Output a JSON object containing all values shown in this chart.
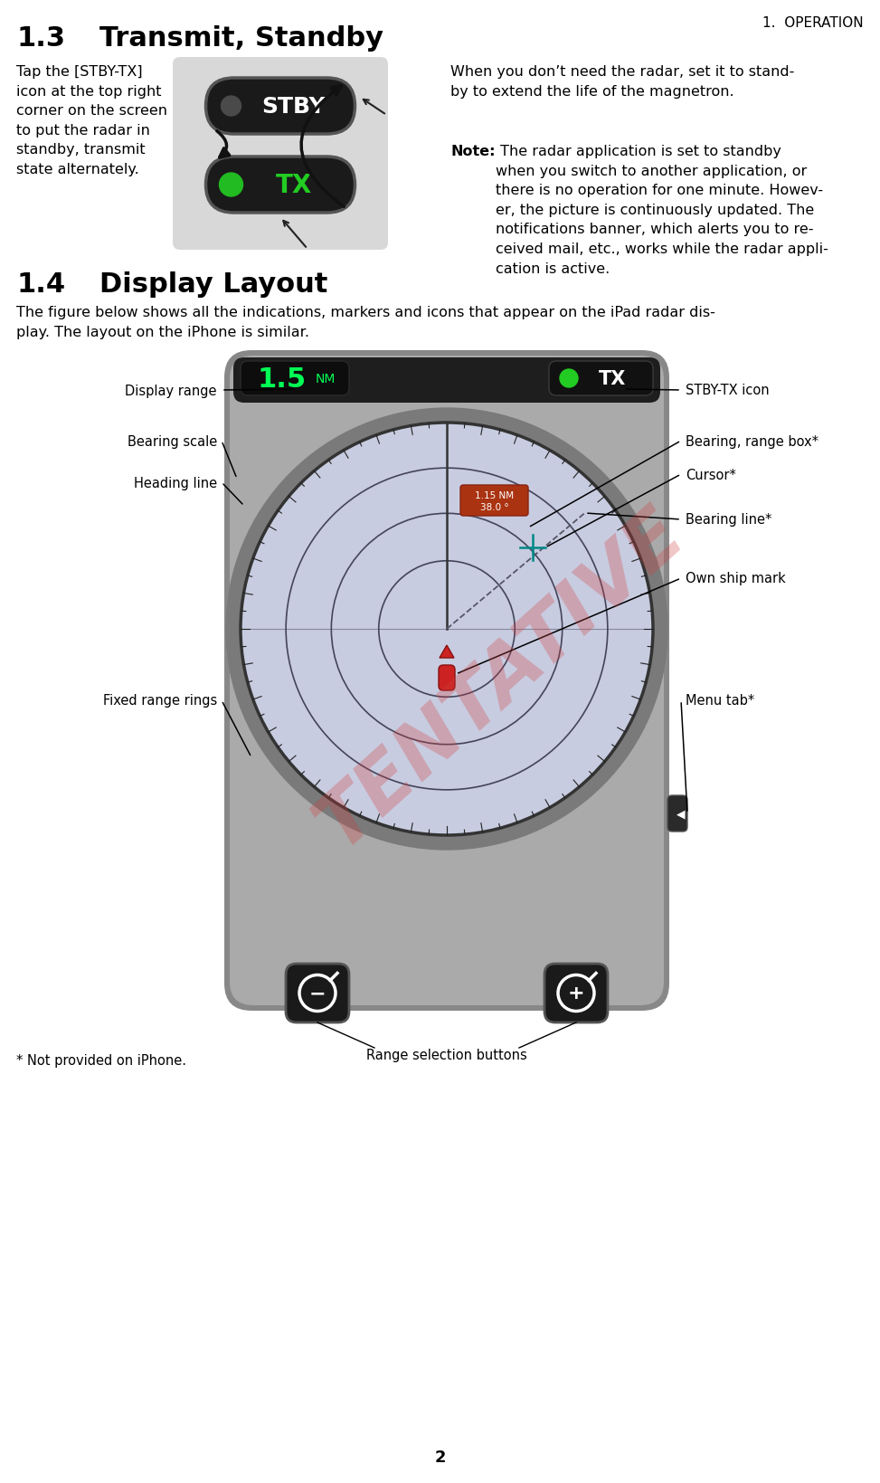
{
  "page_title": "1.  OPERATION",
  "page_number": "2",
  "sec13_num": "1.3",
  "sec13_head": "Transmit, Standby",
  "sec13_left": "Tap the [STBY-TX]\nicon at the top right\ncorner on the screen\nto put the radar in\nstandby, transmit\nstate alternately.",
  "sec13_para1": "When you don’t need the radar, set it to stand-\nby to extend the life of the magnetron.",
  "sec13_note_label": "Note:",
  "sec13_note_body": " The radar application is set to standby\nwhen you switch to another application, or\nthere is no operation for one minute. Howev-\ner, the picture is continuously updated. The\nnotifications banner, which alerts you to re-\nceived mail, etc., works while the radar appli-\ncation is active.",
  "sec14_num": "1.4",
  "sec14_head": "Display Layout",
  "sec14_intro": "The figure below shows all the indications, markers and icons that appear on the iPad radar dis-\nplay. The layout on the iPhone is similar.",
  "footnote": "* Not provided on iPhone.",
  "left_labels": [
    "Display range",
    "Bearing scale",
    "Heading line",
    "Fixed range rings"
  ],
  "right_labels": [
    "STBY-TX icon",
    "Bearing, range box*",
    "Cursor*",
    "Bearing line*",
    "Own ship mark",
    "Menu tab*"
  ],
  "range_label": "Range selection buttons",
  "bg": "#ffffff",
  "txt": "#000000",
  "tentative_color": "#d04040",
  "radar_fill": "#c8cce0",
  "device_outer": "#9a9a9a",
  "device_inner": "#bbbbbb",
  "topbar_fill": "#222222",
  "btn_fill": "#1c1c1c",
  "btn_edge": "#555555",
  "ring_color": "#44445a",
  "heading_color": "#333333",
  "bearing_line_color": "#555566",
  "ship_color": "#cc2222",
  "br_box_color": "#cc4422",
  "cursor_color": "#008888",
  "green_dot": "#22cc22",
  "gray_dot": "#555555",
  "stby_label_color": "#ffffff",
  "tx_label_color": "#22cc22"
}
